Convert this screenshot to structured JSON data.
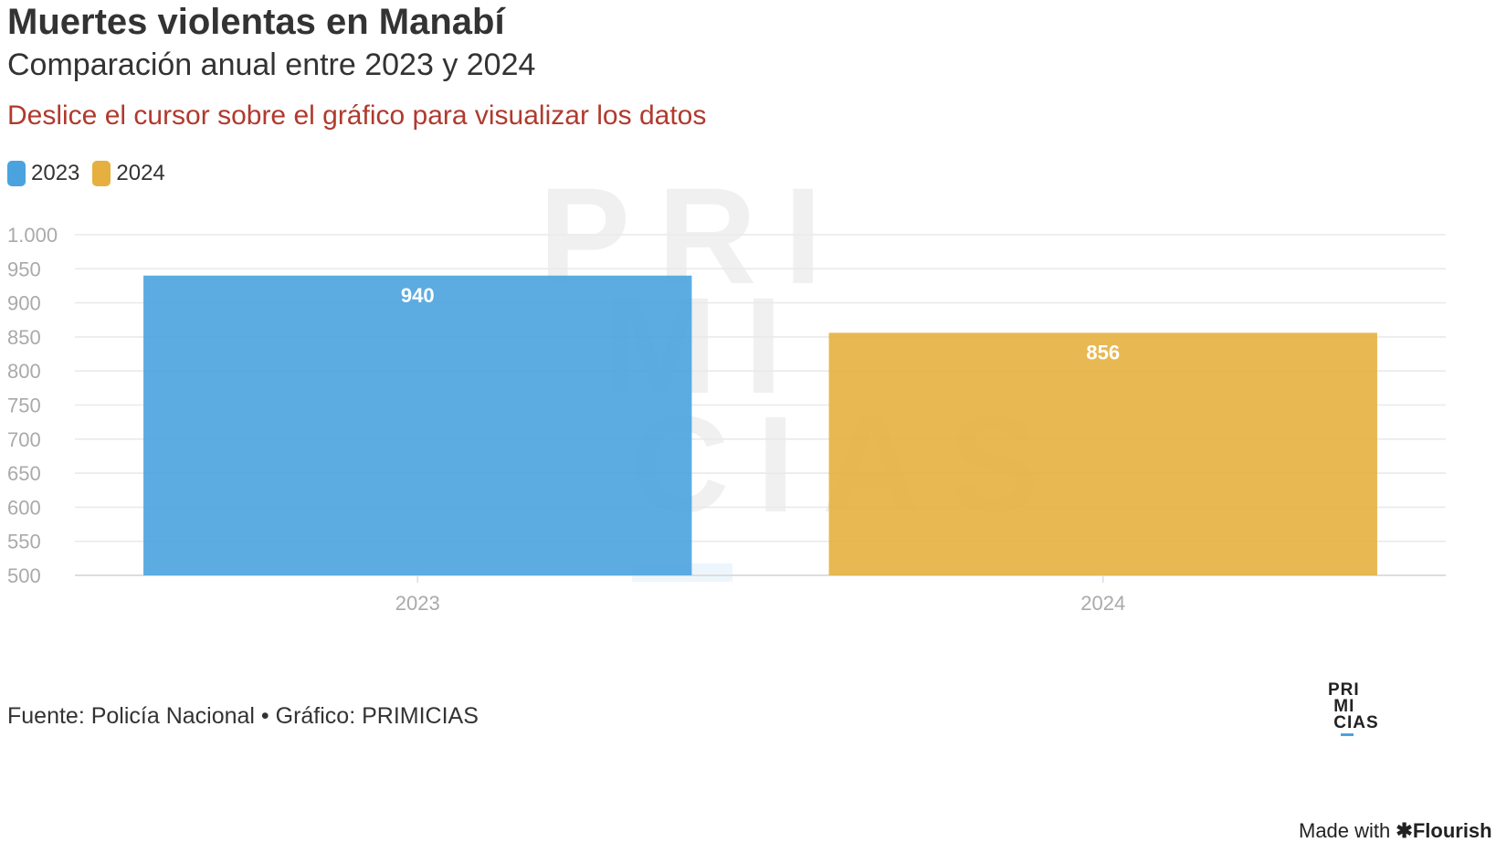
{
  "header": {
    "title": "Muertes violentas en Manabí",
    "subtitle": "Comparación anual entre 2023 y 2024",
    "instruction": "Deslice el cursor sobre el gráfico para visualizar los datos"
  },
  "legend": [
    {
      "label": "2023",
      "color": "#4aa3df"
    },
    {
      "label": "2024",
      "color": "#e5b03f"
    }
  ],
  "chart_data": {
    "type": "bar",
    "categories": [
      "2023",
      "2024"
    ],
    "values": [
      940,
      856
    ],
    "colors": [
      "#4aa3df",
      "#e5b03f"
    ],
    "data_labels": [
      "940",
      "856"
    ],
    "ylim": [
      500,
      1000
    ],
    "yticks": [
      500,
      550,
      600,
      650,
      700,
      750,
      800,
      850,
      900,
      950,
      1000
    ],
    "ytick_labels": [
      "500",
      "550",
      "600",
      "650",
      "700",
      "750",
      "800",
      "850",
      "900",
      "950",
      "1.000"
    ],
    "grid": true,
    "legend_position": "top-left",
    "xlabel": "",
    "ylabel": ""
  },
  "watermark": {
    "lines": [
      "PRI",
      "MI",
      "CIAS"
    ]
  },
  "footer": {
    "source": "Fuente: Policía Nacional • Gráfico: PRIMICIAS"
  },
  "logo": {
    "lines": [
      "PRI",
      " MI",
      " CIAS"
    ]
  },
  "made_with": {
    "prefix": "Made with ",
    "brand": "✱Flourish"
  }
}
